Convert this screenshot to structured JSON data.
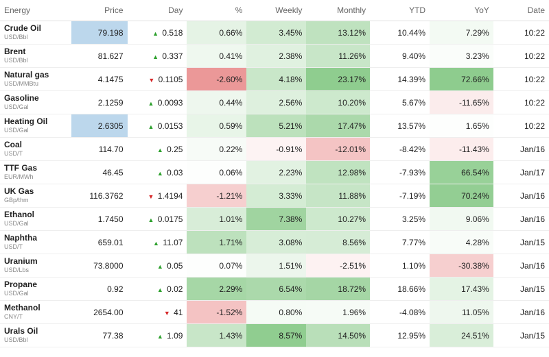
{
  "table": {
    "type": "table",
    "headers": [
      "Energy",
      "Price",
      "Day",
      "%",
      "Weekly",
      "Monthly",
      "YTD",
      "YoY",
      "Date"
    ],
    "heatmap": {
      "pos_color": "#2ca02c",
      "neg_color": "#d62728",
      "max_opacity": 0.55,
      "columns_with_heat": [
        "pct",
        "weekly",
        "monthly",
        "yoy"
      ],
      "scale_abs_max": {
        "pct": 3.0,
        "weekly": 9.0,
        "monthly": 24.0,
        "yoy": 75.0
      }
    },
    "colors": {
      "price_highlight_bg": "#bcd7ec",
      "up_arrow": "#2ca02c",
      "down_arrow": "#d62728",
      "row_border": "#eeeeee",
      "header_text": "#666666",
      "unit_text": "#888888"
    },
    "rows": [
      {
        "name": "Crude Oil",
        "unit": "USD/Bbl",
        "price": "79.198",
        "price_hl": true,
        "day": 0.518,
        "pct": 0.66,
        "weekly": 3.45,
        "monthly": 13.12,
        "ytd": 10.44,
        "yoy": 7.29,
        "date": "10:22"
      },
      {
        "name": "Brent",
        "unit": "USD/Bbl",
        "price": "81.627",
        "price_hl": false,
        "day": 0.337,
        "pct": 0.41,
        "weekly": 2.38,
        "monthly": 11.26,
        "ytd": 9.4,
        "yoy": 3.23,
        "date": "10:22"
      },
      {
        "name": "Natural gas",
        "unit": "USD/MMBtu",
        "price": "4.1475",
        "price_hl": false,
        "day": -0.1105,
        "pct": -2.6,
        "weekly": 4.18,
        "monthly": 23.17,
        "ytd": 14.39,
        "yoy": 72.66,
        "date": "10:22"
      },
      {
        "name": "Gasoline",
        "unit": "USD/Gal",
        "price": "2.1259",
        "price_hl": false,
        "day": 0.0093,
        "pct": 0.44,
        "weekly": 2.56,
        "monthly": 10.2,
        "ytd": 5.67,
        "yoy": -11.65,
        "date": "10:22"
      },
      {
        "name": "Heating Oil",
        "unit": "USD/Gal",
        "price": "2.6305",
        "price_hl": true,
        "day": 0.0153,
        "pct": 0.59,
        "weekly": 5.21,
        "monthly": 17.47,
        "ytd": 13.57,
        "yoy": 1.65,
        "date": "10:22"
      },
      {
        "name": "Coal",
        "unit": "USD/T",
        "price": "114.70",
        "price_hl": false,
        "day": 0.25,
        "pct": 0.22,
        "weekly": -0.91,
        "monthly": -12.01,
        "ytd": -8.42,
        "yoy": -11.43,
        "date": "Jan/16"
      },
      {
        "name": "TTF Gas",
        "unit": "EUR/MWh",
        "price": "46.45",
        "price_hl": false,
        "day": 0.03,
        "pct": 0.06,
        "weekly": 2.23,
        "monthly": 12.98,
        "ytd": -7.93,
        "yoy": 66.54,
        "date": "Jan/17"
      },
      {
        "name": "UK Gas",
        "unit": "GBp/thm",
        "price": "116.3762",
        "price_hl": false,
        "day": -1.4194,
        "pct": -1.21,
        "weekly": 3.33,
        "monthly": 11.88,
        "ytd": -7.19,
        "yoy": 70.24,
        "date": "Jan/16"
      },
      {
        "name": "Ethanol",
        "unit": "USD/Gal",
        "price": "1.7450",
        "price_hl": false,
        "day": 0.0175,
        "pct": 1.01,
        "weekly": 7.38,
        "monthly": 10.27,
        "ytd": 3.25,
        "yoy": 9.06,
        "date": "Jan/16"
      },
      {
        "name": "Naphtha",
        "unit": "USD/T",
        "price": "659.01",
        "price_hl": false,
        "day": 11.07,
        "pct": 1.71,
        "weekly": 3.08,
        "monthly": 8.56,
        "ytd": 7.77,
        "yoy": 4.28,
        "date": "Jan/15"
      },
      {
        "name": "Uranium",
        "unit": "USD/Lbs",
        "price": "73.8000",
        "price_hl": false,
        "day": 0.05,
        "pct": 0.07,
        "weekly": 1.51,
        "monthly": -2.51,
        "ytd": 1.1,
        "yoy": -30.38,
        "date": "Jan/16"
      },
      {
        "name": "Propane",
        "unit": "USD/Gal",
        "price": "0.92",
        "price_hl": false,
        "day": 0.02,
        "pct": 2.29,
        "weekly": 6.54,
        "monthly": 18.72,
        "ytd": 18.66,
        "yoy": 17.43,
        "date": "Jan/15"
      },
      {
        "name": "Methanol",
        "unit": "CNY/T",
        "price": "2654.00",
        "price_hl": false,
        "day": -41.0,
        "pct": -1.52,
        "weekly": 0.8,
        "monthly": 1.96,
        "ytd": -4.08,
        "yoy": 11.05,
        "date": "Jan/16"
      },
      {
        "name": "Urals Oil",
        "unit": "USD/Bbl",
        "price": "77.38",
        "price_hl": false,
        "day": 1.09,
        "pct": 1.43,
        "weekly": 8.57,
        "monthly": 14.5,
        "ytd": 12.95,
        "yoy": 24.51,
        "date": "Jan/15"
      }
    ]
  }
}
